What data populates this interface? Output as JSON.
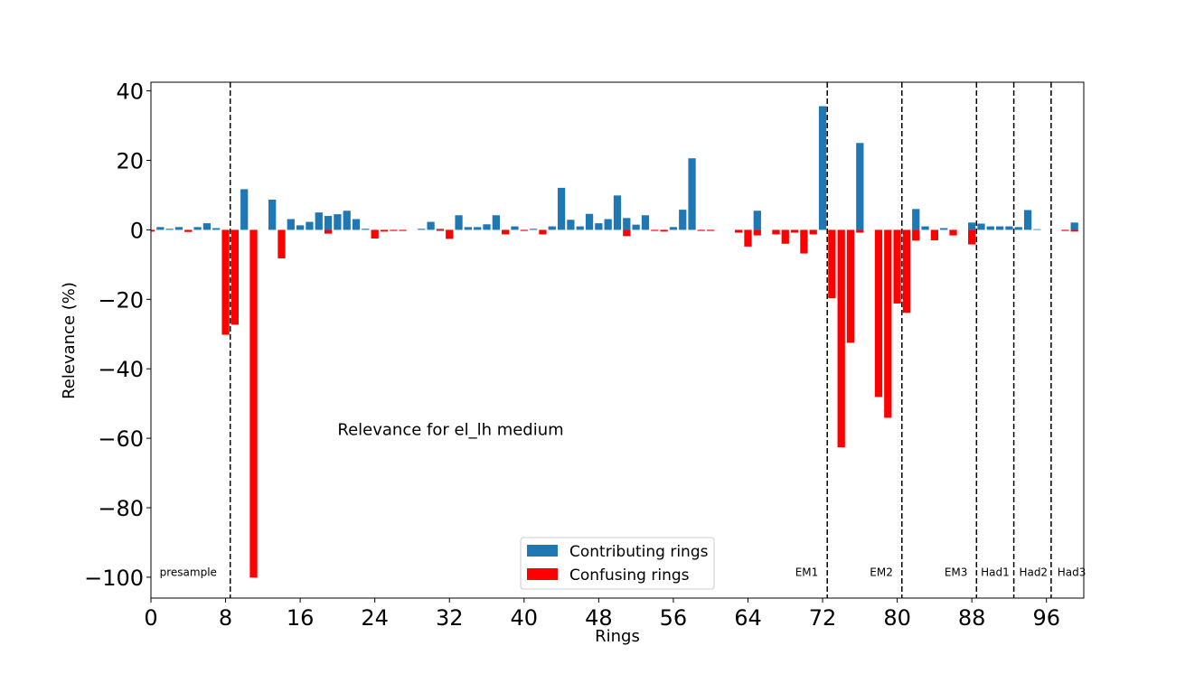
{
  "chart_data": {
    "type": "bar",
    "xlabel": "Rings",
    "ylabel": "Relevance (%)",
    "xlim": [
      0,
      100
    ],
    "ylim": [
      -106,
      42.5
    ],
    "xticks": [
      0,
      8,
      16,
      24,
      32,
      40,
      48,
      56,
      64,
      72,
      80,
      88,
      96
    ],
    "yticks": [
      40,
      20,
      0,
      -20,
      -40,
      -60,
      -80,
      -100
    ],
    "ytick_labels": [
      "40",
      "20",
      "0",
      "−20",
      "−40",
      "−60",
      "−80",
      "−100"
    ],
    "annotation": {
      "text": "Relevance for el_lh medium",
      "x": 20,
      "y": -59
    },
    "region_boundaries": [
      8.5,
      72.5,
      80.5,
      88.5,
      92.5,
      96.5
    ],
    "regions": [
      {
        "label": "presample",
        "x": 4
      },
      {
        "label": "EM1",
        "x": 70.3
      },
      {
        "label": "EM2",
        "x": 78.3
      },
      {
        "label": "EM3",
        "x": 86.3
      },
      {
        "label": "Had1",
        "x": 90.5
      },
      {
        "label": "Had2",
        "x": 94.6
      },
      {
        "label": "Had3",
        "x": 98.7
      }
    ],
    "legend": {
      "position": "lower center",
      "entries": [
        {
          "label": "Contributing rings",
          "color": "#1f77b4"
        },
        {
          "label": "Confusing rings",
          "color": "#ff0000"
        }
      ]
    },
    "series": [
      {
        "name": "Contributing rings",
        "color": "#1f77b4",
        "x": [
          1,
          2,
          3,
          5,
          6,
          7,
          10,
          13,
          15,
          16,
          17,
          18,
          19,
          20,
          21,
          22,
          23,
          29,
          30,
          31,
          33,
          34,
          35,
          36,
          37,
          39,
          41,
          43,
          44,
          45,
          46,
          47,
          48,
          49,
          50,
          51,
          52,
          53,
          56,
          57,
          58,
          65,
          72,
          76,
          82,
          83,
          85,
          88,
          89,
          90,
          91,
          92,
          93,
          94,
          95,
          99
        ],
        "values": [
          0.8,
          0.3,
          0.8,
          0.8,
          1.9,
          0.5,
          11.7,
          8.7,
          3.1,
          1.3,
          2.3,
          5.0,
          4.0,
          4.5,
          5.5,
          3.1,
          0.3,
          0.3,
          2.3,
          0.3,
          4.2,
          0.8,
          0.8,
          1.6,
          4.2,
          1.0,
          0.3,
          1.0,
          12.1,
          2.9,
          1.0,
          4.6,
          1.9,
          3.1,
          9.9,
          3.4,
          1.5,
          4.2,
          0.8,
          5.8,
          20.6,
          5.5,
          35.6,
          25.0,
          6.0,
          1.0,
          0.5,
          2.1,
          1.8,
          1.0,
          1.0,
          1.0,
          0.8,
          5.7,
          0.2,
          2.1
        ]
      },
      {
        "name": "Confusing rings",
        "color": "#ff0000",
        "x": [
          0,
          4,
          8,
          9,
          11,
          14,
          19,
          24,
          25,
          26,
          27,
          31,
          32,
          38,
          40,
          42,
          51,
          54,
          55,
          59,
          60,
          63,
          64,
          65,
          67,
          68,
          69,
          70,
          71,
          73,
          74,
          75,
          76,
          78,
          79,
          80,
          81,
          82,
          84,
          86,
          88,
          98,
          99
        ],
        "values": [
          -0.5,
          -0.6,
          -30.2,
          -27.3,
          -100.1,
          -8.2,
          -1.1,
          -2.5,
          -0.5,
          -0.3,
          -0.3,
          -0.3,
          -2.6,
          -1.3,
          -0.3,
          -1.3,
          -1.8,
          -0.3,
          -0.5,
          -0.3,
          -0.3,
          -0.8,
          -4.8,
          -1.6,
          -1.3,
          -4.0,
          -0.8,
          -6.8,
          -1.3,
          -19.7,
          -62.6,
          -32.5,
          -0.8,
          -48.1,
          -54.1,
          -21.2,
          -23.9,
          -3.1,
          -3.0,
          -1.6,
          -4.2,
          -0.3,
          -0.5
        ]
      }
    ]
  }
}
